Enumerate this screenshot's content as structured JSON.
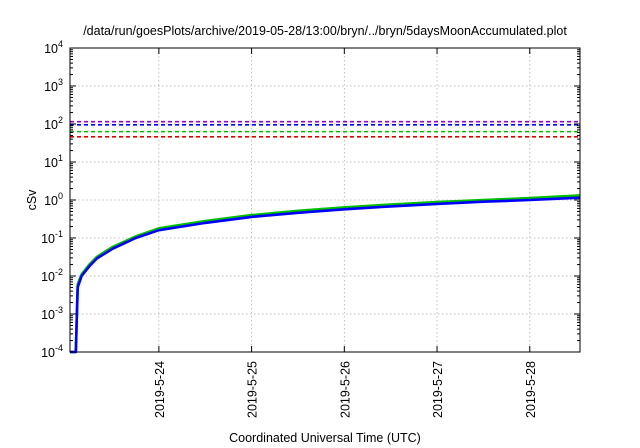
{
  "chart_data": {
    "type": "line",
    "title": "/data/run/goesPlots/archive/2019-05-28/13:00/bryn/../bryn/5daysMoonAccumulated.plot",
    "xlabel": "Coordinated Universal Time (UTC)",
    "ylabel": "cSv",
    "yscale": "log",
    "ylim": [
      0.0001,
      10000
    ],
    "xlim": [
      "2019-05-23T01:00",
      "2019-05-28T13:00"
    ],
    "grid": true,
    "x_ticks": [
      "2019-5-24",
      "2019-5-25",
      "2019-5-26",
      "2019-5-27",
      "2019-5-28"
    ],
    "y_ticks": [
      {
        "value": 0.0001,
        "base": "10",
        "exp": "-4"
      },
      {
        "value": 0.001,
        "base": "10",
        "exp": "-3"
      },
      {
        "value": 0.01,
        "base": "10",
        "exp": "-2"
      },
      {
        "value": 0.1,
        "base": "10",
        "exp": "-1"
      },
      {
        "value": 1,
        "base": "10",
        "exp": "0"
      },
      {
        "value": 10,
        "base": "10",
        "exp": "1"
      },
      {
        "value": 100,
        "base": "10",
        "exp": "2"
      },
      {
        "value": 1000,
        "base": "10",
        "exp": "3"
      },
      {
        "value": 10000,
        "base": "10",
        "exp": "4"
      }
    ],
    "thresholds": [
      {
        "value": 115,
        "color": "#9400d3"
      },
      {
        "value": 95,
        "color": "#0000ff"
      },
      {
        "value": 63,
        "color": "#00c000"
      },
      {
        "value": 46,
        "color": "#e00000"
      }
    ],
    "series": [
      {
        "color": "#00c000",
        "x": [
          "2019-05-23T01:00",
          "2019-05-23T01:30",
          "2019-05-23T02:00",
          "2019-05-23T02:30",
          "2019-05-23T03:00",
          "2019-05-23T04:00",
          "2019-05-23T06:00",
          "2019-05-23T08:00",
          "2019-05-23T12:00",
          "2019-05-23T18:00",
          "2019-05-24T00:00",
          "2019-05-24T12:00",
          "2019-05-25T00:00",
          "2019-05-25T12:00",
          "2019-05-26T00:00",
          "2019-05-26T12:00",
          "2019-05-27T00:00",
          "2019-05-27T12:00",
          "2019-05-28T00:00",
          "2019-05-28T13:00"
        ],
        "y": [
          0.0001,
          0.0001,
          0.0001,
          0.0001,
          0.006,
          0.011,
          0.02,
          0.032,
          0.058,
          0.11,
          0.18,
          0.28,
          0.4,
          0.52,
          0.64,
          0.76,
          0.88,
          1.0,
          1.12,
          1.32
        ]
      },
      {
        "color": "#0000ff",
        "x": [
          "2019-05-23T01:00",
          "2019-05-23T01:30",
          "2019-05-23T02:00",
          "2019-05-23T02:30",
          "2019-05-23T03:00",
          "2019-05-23T04:00",
          "2019-05-23T06:00",
          "2019-05-23T08:00",
          "2019-05-23T12:00",
          "2019-05-23T18:00",
          "2019-05-24T00:00",
          "2019-05-24T12:00",
          "2019-05-25T00:00",
          "2019-05-25T12:00",
          "2019-05-26T00:00",
          "2019-05-26T12:00",
          "2019-05-27T00:00",
          "2019-05-27T12:00",
          "2019-05-28T00:00",
          "2019-05-28T13:00"
        ],
        "y": [
          0.0001,
          0.0001,
          0.0001,
          0.0001,
          0.005,
          0.01,
          0.018,
          0.029,
          0.052,
          0.1,
          0.16,
          0.25,
          0.36,
          0.46,
          0.57,
          0.68,
          0.79,
          0.9,
          1.0,
          1.15
        ]
      }
    ]
  }
}
